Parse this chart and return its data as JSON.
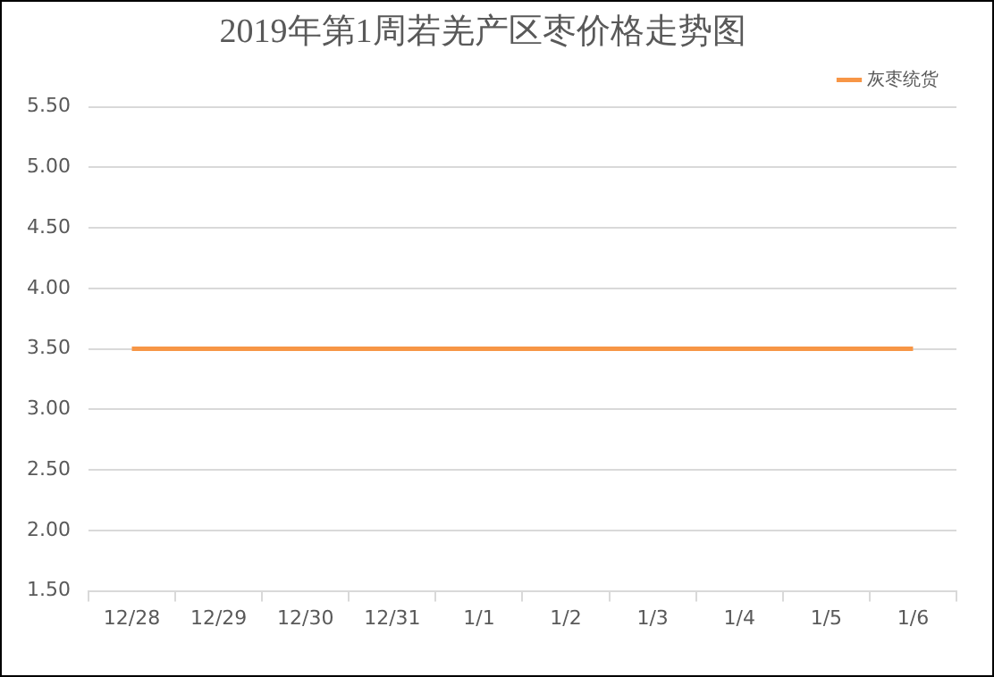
{
  "chart_data": {
    "type": "line",
    "title": "2019年第1周若羌产区枣价格走势图",
    "categories": [
      "12/28",
      "12/29",
      "12/30",
      "12/31",
      "1/1",
      "1/2",
      "1/3",
      "1/4",
      "1/5",
      "1/6"
    ],
    "series": [
      {
        "name": "灰枣统货",
        "color": "#f79646",
        "values": [
          3.5,
          3.5,
          3.5,
          3.5,
          3.5,
          3.5,
          3.5,
          3.5,
          3.5,
          3.5
        ]
      }
    ],
    "ylim": [
      1.5,
      5.5
    ],
    "yticks": [
      {
        "value": 1.5,
        "label": "1.50"
      },
      {
        "value": 2,
        "label": "2.00"
      },
      {
        "value": 2.5,
        "label": "2.50"
      },
      {
        "value": 3,
        "label": "3.00"
      },
      {
        "value": 3.5,
        "label": "3.50"
      },
      {
        "value": 4,
        "label": "4.00"
      },
      {
        "value": 4.5,
        "label": "4.50"
      },
      {
        "value": 5,
        "label": "5.00"
      },
      {
        "value": 5.5,
        "label": "5.50"
      }
    ],
    "grid": "y",
    "legend": "top right",
    "marker": "none",
    "line_style": "solid"
  }
}
